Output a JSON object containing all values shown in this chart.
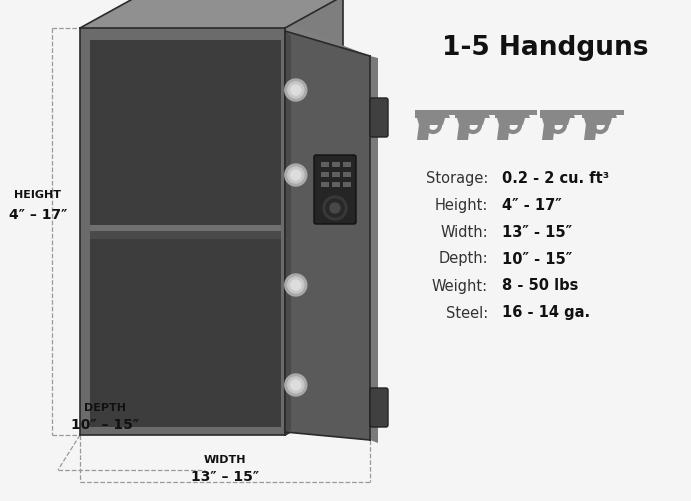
{
  "title": "1-5 Handguns",
  "bg_color": "#f5f5f5",
  "safe_body_color": "#6b6b6b",
  "safe_side_color": "#7e7e7e",
  "safe_top_color": "#909090",
  "safe_interior_color": "#3d3d3d",
  "safe_door_color": "#5a5a5a",
  "safe_door_edge_color": "#7a7a7a",
  "safe_door_inner_color": "#4a4a4a",
  "shelf_color": "#707070",
  "shelf_shadow_color": "#4a4a4a",
  "bolt_color": "#c8c8c8",
  "keypad_bg": "#252525",
  "keypad_btn": "#4a4a4a",
  "handle_color": "#404040",
  "edge_color": "#2a2a2a",
  "dim_line_color": "#999999",
  "dim_text_color": "#111111",
  "gun_color": "#888888",
  "num_guns": 5,
  "stats_labels": [
    "Storage:",
    "Height:",
    "Width:",
    "Depth:",
    "Weight:",
    "Steel:"
  ],
  "stats_values": [
    "0.2 - 2 cu. ft³",
    "4″ - 17″",
    "13″ - 15″",
    "10″ - 15″",
    "8 - 50 lbs",
    "16 - 14 ga."
  ],
  "height_label": "HEIGHT",
  "height_value": "4″ – 17″",
  "depth_label": "DEPTH",
  "depth_value": "10″ – 15″",
  "width_label": "WIDTH",
  "width_value": "13″ – 15″"
}
